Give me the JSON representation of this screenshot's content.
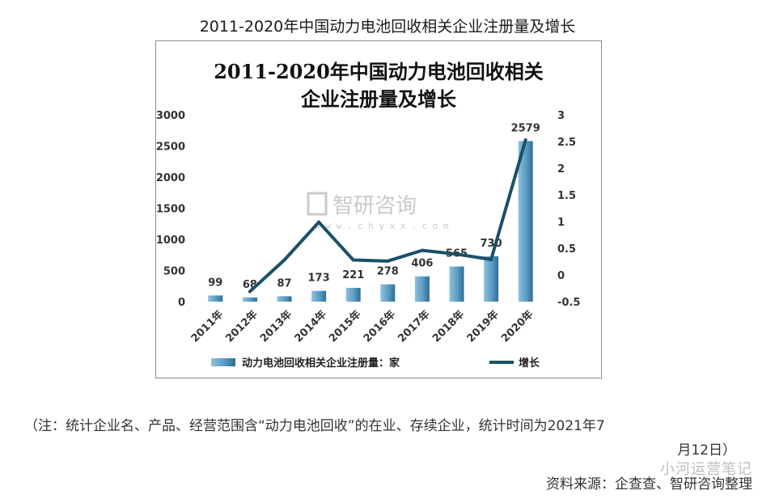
{
  "caption": {
    "title": "2011-2020年中国动力电池回收相关企业注册量及增长",
    "note_line1": "（注：统计企业名、产品、经营范围含“动力电池回收”的在业、存续企业，统计时间为2021年7",
    "note_line2": "月12日）",
    "source": "资料来源：企查查、智研咨询整理",
    "wechat_watermark": "小河运营笔记"
  },
  "watermark": {
    "brand": "智研咨询",
    "url": "w w w . c h y x x . c o m"
  },
  "colors": {
    "bar": "#5a9bc4",
    "bar_dark": "#2f6d93",
    "line": "#1b5068"
  },
  "chart_data": {
    "type": "bar",
    "title_line1": "2011-2020年中国动力电池回收相关",
    "title_line2": "企业注册量及增长",
    "categories": [
      "2011年",
      "2012年",
      "2013年",
      "2014年",
      "2015年",
      "2016年",
      "2017年",
      "2018年",
      "2019年",
      "2020年"
    ],
    "series": [
      {
        "name": "动力电池回收相关企业注册量：家",
        "type": "bar",
        "axis": "left",
        "values": [
          99,
          68,
          87,
          173,
          221,
          278,
          406,
          565,
          730,
          2579
        ]
      },
      {
        "name": "增长",
        "type": "line",
        "axis": "right",
        "values": [
          null,
          -0.31,
          0.28,
          0.99,
          0.28,
          0.26,
          0.46,
          0.39,
          0.29,
          2.53
        ]
      }
    ],
    "ylim_left": [
      0,
      3000
    ],
    "yticks_left": [
      "0",
      "500",
      "1000",
      "1500",
      "2000",
      "2500",
      "3000"
    ],
    "ylim_right": [
      -0.5,
      3
    ],
    "yticks_right": [
      "-0.5",
      "0",
      "0.5",
      "1",
      "1.5",
      "2",
      "2.5",
      "3"
    ],
    "grid": false,
    "legend": "bottom"
  }
}
